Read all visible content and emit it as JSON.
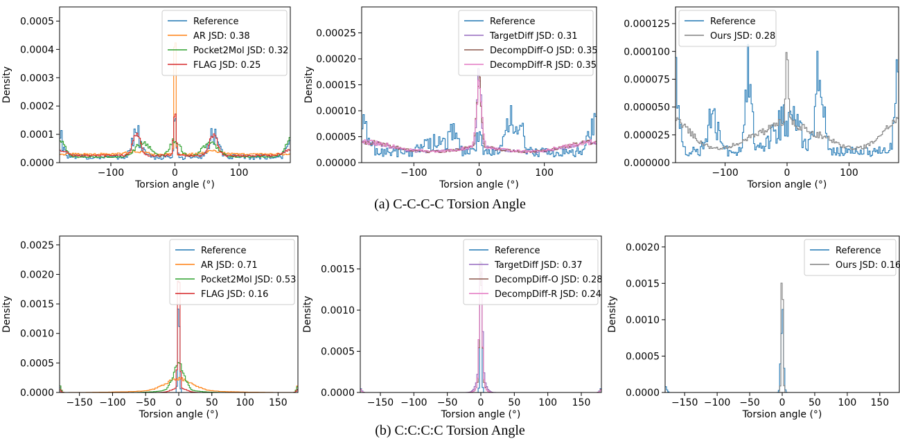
{
  "captions": [
    "(a) C-C-C-C Torsion Angle",
    "(b) C:C:C:C Torsion Angle"
  ],
  "colors": {
    "Reference": "#1f77b4",
    "AR": "#ff7f0e",
    "Pocket2Mol": "#2ca02c",
    "FLAG": "#d62728",
    "TargetDiff": "#9467bd",
    "DecompDiff-O": "#8c564b",
    "DecompDiff-R": "#e377c2",
    "Ours": "#7f7f7f"
  },
  "chart_data": [
    {
      "type": "line",
      "row": 0,
      "col": 0,
      "profile": "ccc_baselines",
      "xlabel": "Torsion angle (°)",
      "ylabel": "Density",
      "xlim": [
        -180,
        180
      ],
      "ylim": [
        0,
        0.00055
      ],
      "xticks": [
        -100,
        0,
        100
      ],
      "xtick_labels": [
        "−100",
        "0",
        "100"
      ],
      "yticks": [
        0,
        0.0001,
        0.0002,
        0.0003,
        0.0004,
        0.0005
      ],
      "ytick_labels": [
        "0.0000",
        "0.0001",
        "0.0002",
        "0.0003",
        "0.0004",
        "0.0005"
      ],
      "legend": "top-right",
      "series": [
        {
          "name": "Reference",
          "key": "Reference"
        },
        {
          "name": "AR JSD: 0.38",
          "key": "AR"
        },
        {
          "name": "Pocket2Mol JSD: 0.32",
          "key": "Pocket2Mol"
        },
        {
          "name": "FLAG JSD: 0.25",
          "key": "FLAG"
        }
      ]
    },
    {
      "type": "line",
      "row": 0,
      "col": 1,
      "profile": "ccc_diffusion",
      "xlabel": "Torsion angle (°)",
      "ylabel": "Density",
      "xlim": [
        -180,
        180
      ],
      "ylim": [
        0,
        0.0003
      ],
      "xticks": [
        -100,
        0,
        100
      ],
      "xtick_labels": [
        "−100",
        "0",
        "100"
      ],
      "yticks": [
        0,
        5e-05,
        0.0001,
        0.00015,
        0.0002,
        0.00025
      ],
      "ytick_labels": [
        "0.00000",
        "0.00005",
        "0.00010",
        "0.00015",
        "0.00020",
        "0.00025"
      ],
      "legend": "top-right",
      "series": [
        {
          "name": "Reference",
          "key": "Reference"
        },
        {
          "name": "TargetDiff JSD: 0.31",
          "key": "TargetDiff"
        },
        {
          "name": "DecompDiff-O JSD: 0.35",
          "key": "DecompDiff-O"
        },
        {
          "name": "DecompDiff-R JSD: 0.35",
          "key": "DecompDiff-R"
        }
      ]
    },
    {
      "type": "line",
      "row": 0,
      "col": 2,
      "profile": "ccc_ours",
      "xlabel": "Torsion angle (°)",
      "ylabel": "",
      "xlim": [
        -180,
        180
      ],
      "ylim": [
        0,
        0.00014
      ],
      "xticks": [
        -100,
        0,
        100
      ],
      "xtick_labels": [
        "−100",
        "0",
        "100"
      ],
      "yticks": [
        0,
        2.5e-05,
        5e-05,
        7.5e-05,
        0.0001,
        0.000125
      ],
      "ytick_labels": [
        "0.000000",
        "0.000025",
        "0.000050",
        "0.000075",
        "0.000100",
        "0.000125"
      ],
      "legend": "top-left",
      "series": [
        {
          "name": "Reference",
          "key": "Reference"
        },
        {
          "name": "Ours JSD: 0.28",
          "key": "Ours"
        }
      ]
    },
    {
      "type": "line",
      "row": 1,
      "col": 0,
      "profile": "arom_baselines",
      "xlabel": "Torsion angle (°)",
      "ylabel": "Density",
      "xlim": [
        -180,
        180
      ],
      "ylim": [
        0,
        0.00265
      ],
      "xticks": [
        -150,
        -100,
        -50,
        0,
        50,
        100,
        150
      ],
      "xtick_labels": [
        "−150",
        "−100",
        "−50",
        "0",
        "50",
        "100",
        "150"
      ],
      "yticks": [
        0,
        0.0005,
        0.001,
        0.0015,
        0.002,
        0.0025
      ],
      "ytick_labels": [
        "0.0000",
        "0.0005",
        "0.0010",
        "0.0015",
        "0.0020",
        "0.0025"
      ],
      "legend": "top-right",
      "series": [
        {
          "name": "Reference",
          "key": "Reference"
        },
        {
          "name": "AR JSD: 0.71",
          "key": "AR"
        },
        {
          "name": "Pocket2Mol JSD: 0.53",
          "key": "Pocket2Mol"
        },
        {
          "name": "FLAG JSD: 0.16",
          "key": "FLAG"
        }
      ]
    },
    {
      "type": "line",
      "row": 1,
      "col": 1,
      "profile": "arom_diffusion",
      "xlabel": "Torsion angle (°)",
      "ylabel": "Density",
      "xlim": [
        -180,
        180
      ],
      "ylim": [
        0,
        0.0019
      ],
      "xticks": [
        -150,
        -100,
        -50,
        0,
        50,
        100,
        150
      ],
      "xtick_labels": [
        "−150",
        "−100",
        "−50",
        "0",
        "50",
        "100",
        "150"
      ],
      "yticks": [
        0,
        0.0005,
        0.001,
        0.0015
      ],
      "ytick_labels": [
        "0.0000",
        "0.0005",
        "0.0010",
        "0.0015"
      ],
      "legend": "top-right",
      "series": [
        {
          "name": "Reference",
          "key": "Reference"
        },
        {
          "name": "TargetDiff JSD: 0.37",
          "key": "TargetDiff"
        },
        {
          "name": "DecompDiff-O JSD: 0.28",
          "key": "DecompDiff-O"
        },
        {
          "name": "DecompDiff-R JSD: 0.24",
          "key": "DecompDiff-R"
        }
      ]
    },
    {
      "type": "line",
      "row": 1,
      "col": 2,
      "profile": "arom_ours",
      "xlabel": "Torsion angle (°)",
      "ylabel": "Density",
      "xlim": [
        -180,
        180
      ],
      "ylim": [
        0,
        0.00215
      ],
      "xticks": [
        -150,
        -100,
        -50,
        0,
        50,
        100,
        150
      ],
      "xtick_labels": [
        "−150",
        "−100",
        "−50",
        "0",
        "50",
        "100",
        "150"
      ],
      "yticks": [
        0,
        0.0005,
        0.001,
        0.0015,
        0.002
      ],
      "ytick_labels": [
        "0.0000",
        "0.0005",
        "0.0010",
        "0.0015",
        "0.0020"
      ],
      "legend": "top-right",
      "series": [
        {
          "name": "Reference",
          "key": "Reference"
        },
        {
          "name": "Ours JSD: 0.16",
          "key": "Ours"
        }
      ]
    }
  ]
}
